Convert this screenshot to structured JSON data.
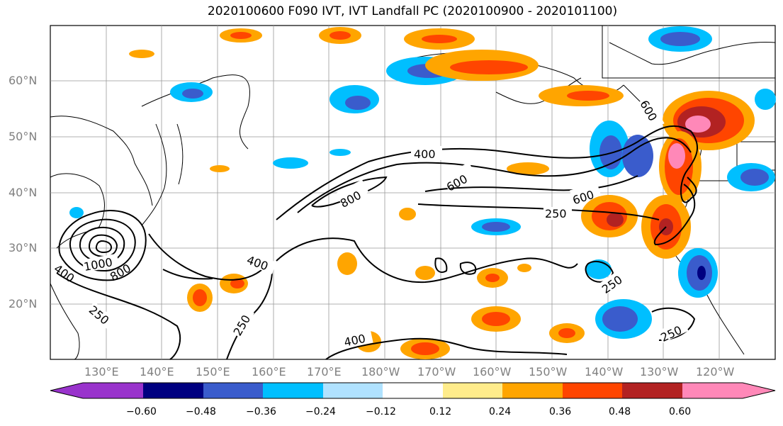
{
  "title": "2020100600 F090 IVT, IVT Landfall PC (2020100900 - 2020101100)",
  "lat_labels": [
    "60°N",
    "50°N",
    "40°N",
    "30°N",
    "20°N"
  ],
  "lon_labels": [
    "130°E",
    "140°E",
    "150°E",
    "160°E",
    "170°E",
    "180°W",
    "170°W",
    "160°W",
    "150°W",
    "140°W",
    "130°W",
    "120°W"
  ],
  "contour_labels": [
    "400",
    "600",
    "800",
    "600",
    "250",
    "600",
    "400",
    "1000",
    "800",
    "400",
    "250",
    "250",
    "400",
    "250",
    "250"
  ],
  "colorbar": {
    "tick_labels": [
      "−0.60",
      "−0.48",
      "−0.36",
      "−0.24",
      "−0.12",
      "0.12",
      "0.24",
      "0.36",
      "0.48",
      "0.60"
    ],
    "colors": [
      "#9933cc",
      "#000080",
      "#3a5ccc",
      "#00bfff",
      "#b0e2ff",
      "#ffffff",
      "#ffec8b",
      "#ffa500",
      "#ff4500",
      "#b22222",
      "#ff88b8"
    ]
  }
}
